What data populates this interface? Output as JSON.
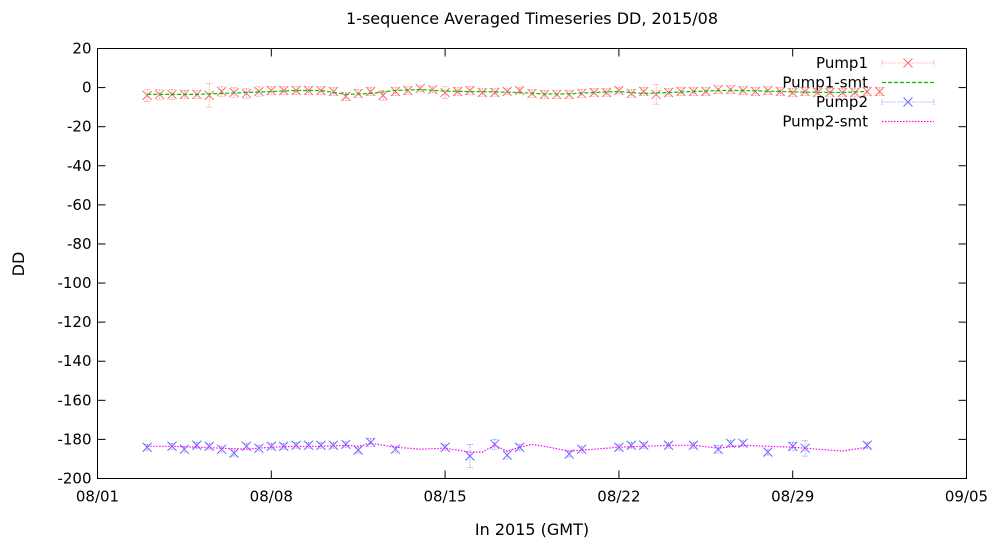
{
  "chart_data": {
    "type": "line",
    "title": "1-sequence Averaged Timeseries DD, 2015/08",
    "xlabel": "In 2015 (GMT)",
    "ylabel": "DD",
    "xlim": [
      "2015-08-01",
      "2015-09-05"
    ],
    "ylim": [
      -200,
      20
    ],
    "x_ticks": [
      "08/01",
      "08/08",
      "08/15",
      "08/22",
      "08/29",
      "09/05"
    ],
    "y_ticks": [
      "20",
      "0",
      "-20",
      "-40",
      "-60",
      "-80",
      "-100",
      "-120",
      "-140",
      "-160",
      "-180",
      "-200"
    ],
    "legend_position": "top-right",
    "grid": false,
    "series": [
      {
        "name": "Pump1",
        "style": "points-errorbars",
        "marker": "x",
        "color": "#ff6a6a",
        "x": [
          "2015-08-03T00:00",
          "2015-08-03T12:00",
          "2015-08-04T00:00",
          "2015-08-04T12:00",
          "2015-08-05T00:00",
          "2015-08-05T12:00",
          "2015-08-06T00:00",
          "2015-08-06T12:00",
          "2015-08-07T00:00",
          "2015-08-07T12:00",
          "2015-08-08T00:00",
          "2015-08-08T12:00",
          "2015-08-09T00:00",
          "2015-08-09T12:00",
          "2015-08-10T00:00",
          "2015-08-10T12:00",
          "2015-08-11T00:00",
          "2015-08-11T12:00",
          "2015-08-12T00:00",
          "2015-08-12T12:00",
          "2015-08-13T00:00",
          "2015-08-13T12:00",
          "2015-08-14T00:00",
          "2015-08-14T12:00",
          "2015-08-15T00:00",
          "2015-08-15T12:00",
          "2015-08-16T00:00",
          "2015-08-16T12:00",
          "2015-08-17T00:00",
          "2015-08-17T12:00",
          "2015-08-18T00:00",
          "2015-08-18T12:00",
          "2015-08-19T00:00",
          "2015-08-19T12:00",
          "2015-08-20T00:00",
          "2015-08-20T12:00",
          "2015-08-21T00:00",
          "2015-08-21T12:00",
          "2015-08-22T00:00",
          "2015-08-22T12:00",
          "2015-08-23T00:00",
          "2015-08-23T12:00",
          "2015-08-24T00:00",
          "2015-08-24T12:00",
          "2015-08-25T00:00",
          "2015-08-25T12:00",
          "2015-08-26T00:00",
          "2015-08-26T12:00",
          "2015-08-27T00:00",
          "2015-08-27T12:00",
          "2015-08-28T00:00",
          "2015-08-28T12:00",
          "2015-08-29T00:00",
          "2015-08-29T12:00",
          "2015-08-30T00:00",
          "2015-08-30T12:00",
          "2015-08-31T00:00",
          "2015-08-31T12:00",
          "2015-09-01T00:00",
          "2015-09-01T12:00"
        ],
        "y": [
          -4,
          -3.5,
          -3.5,
          -3.5,
          -3.5,
          -4,
          -2,
          -2.5,
          -3,
          -2,
          -1.5,
          -1.5,
          -1.5,
          -1.5,
          -1.5,
          -2,
          -4.5,
          -3,
          -2,
          -4,
          -2,
          -1.5,
          -0.5,
          -1,
          -2.5,
          -2,
          -1.5,
          -2.5,
          -2.5,
          -2,
          -1.5,
          -3,
          -3.5,
          -3.5,
          -3.5,
          -3,
          -2.5,
          -2.5,
          -1.5,
          -3,
          -2,
          -3.5,
          -2.5,
          -2,
          -2,
          -2,
          -1,
          -1,
          -1.5,
          -2,
          -1.5,
          -2,
          -2.5,
          -2,
          -2.5,
          -2.5,
          -2.5,
          -2.5,
          -2,
          -2
        ],
        "yerr": [
          3,
          2.5,
          2.5,
          2,
          2,
          6,
          2.5,
          2.5,
          2.5,
          2.5,
          2,
          2,
          2,
          2,
          2,
          2,
          2,
          2,
          2,
          2.5,
          2,
          2,
          1.5,
          1.5,
          3,
          2,
          2,
          2,
          2,
          1.5,
          1.5,
          2,
          2,
          2,
          2,
          2,
          2,
          2,
          1.5,
          2,
          2,
          5,
          2,
          2,
          2,
          2,
          2,
          2,
          2,
          2,
          2,
          2,
          2,
          2,
          2,
          2,
          2,
          2,
          2,
          2
        ]
      },
      {
        "name": "Pump1-smt",
        "style": "dashed-line",
        "color": "#00c000",
        "x": [
          "2015-08-03",
          "2015-08-05",
          "2015-08-07",
          "2015-08-09",
          "2015-08-10",
          "2015-08-11",
          "2015-08-12",
          "2015-08-13",
          "2015-08-14",
          "2015-08-15",
          "2015-08-16",
          "2015-08-17",
          "2015-08-18",
          "2015-08-19",
          "2015-08-20",
          "2015-08-21",
          "2015-08-22",
          "2015-08-23",
          "2015-08-24",
          "2015-08-25",
          "2015-08-26",
          "2015-08-27",
          "2015-08-28",
          "2015-08-29",
          "2015-08-30",
          "2015-08-31",
          "2015-09-01"
        ],
        "y": [
          -3.5,
          -3.5,
          -2.5,
          -1.5,
          -1.5,
          -3.5,
          -3,
          -1.5,
          -1,
          -1.8,
          -2,
          -2.2,
          -2.5,
          -3.3,
          -3.2,
          -2.5,
          -2,
          -3,
          -2.5,
          -2,
          -1.5,
          -1.5,
          -1.8,
          -2.2,
          -2.4,
          -2.5,
          -2
        ]
      },
      {
        "name": "Pump2",
        "style": "points-errorbars",
        "marker": "x",
        "color": "#6a6aff",
        "x": [
          "2015-08-03T00:00",
          "2015-08-04T00:00",
          "2015-08-04T12:00",
          "2015-08-05T00:00",
          "2015-08-05T12:00",
          "2015-08-06T00:00",
          "2015-08-06T12:00",
          "2015-08-07T00:00",
          "2015-08-07T12:00",
          "2015-08-08T00:00",
          "2015-08-08T12:00",
          "2015-08-09T00:00",
          "2015-08-09T12:00",
          "2015-08-10T00:00",
          "2015-08-10T12:00",
          "2015-08-11T00:00",
          "2015-08-11T12:00",
          "2015-08-12T00:00",
          "2015-08-13T00:00",
          "2015-08-15T00:00",
          "2015-08-16T00:00",
          "2015-08-17T00:00",
          "2015-08-17T12:00",
          "2015-08-18T00:00",
          "2015-08-20T00:00",
          "2015-08-20T12:00",
          "2015-08-22T00:00",
          "2015-08-22T12:00",
          "2015-08-23T00:00",
          "2015-08-24T00:00",
          "2015-08-25T00:00",
          "2015-08-26T00:00",
          "2015-08-26T12:00",
          "2015-08-27T00:00",
          "2015-08-28T00:00",
          "2015-08-29T00:00",
          "2015-08-29T12:00",
          "2015-09-01T00:00"
        ],
        "y": [
          -184,
          -183.5,
          -185,
          -183,
          -183.5,
          -185,
          -187,
          -183.5,
          -184.5,
          -183.5,
          -183.5,
          -183,
          -183,
          -183,
          -183,
          -182.5,
          -185.5,
          -181.5,
          -185,
          -184,
          -188.5,
          -182.5,
          -188,
          -184,
          -187.5,
          -185,
          -184,
          -183,
          -183,
          -183,
          -183,
          -185,
          -182,
          -182,
          -186.5,
          -183.5,
          -184.5,
          -183
        ],
        "yerr": [
          1.5,
          1.5,
          1.5,
          1.5,
          1.5,
          1.5,
          1.5,
          1.5,
          1.5,
          1.5,
          1.5,
          1.5,
          1.5,
          1.5,
          1.5,
          1.5,
          1.5,
          2,
          1.5,
          1.5,
          6,
          2.5,
          2,
          1.5,
          1.5,
          1.5,
          1.5,
          1.5,
          1.5,
          1.5,
          1.5,
          2,
          1.5,
          1.5,
          1.5,
          2,
          4,
          1.5
        ]
      },
      {
        "name": "Pump2-smt",
        "style": "dotted-line",
        "color": "#ff00ff",
        "x": [
          "2015-08-03",
          "2015-08-04",
          "2015-08-05",
          "2015-08-06",
          "2015-08-07",
          "2015-08-08",
          "2015-08-09",
          "2015-08-10",
          "2015-08-11",
          "2015-08-11T12:00",
          "2015-08-12",
          "2015-08-13",
          "2015-08-14",
          "2015-08-15",
          "2015-08-16",
          "2015-08-16T12:00",
          "2015-08-17",
          "2015-08-17T12:00",
          "2015-08-18",
          "2015-08-18T12:00",
          "2015-08-19",
          "2015-08-20",
          "2015-08-21",
          "2015-08-22",
          "2015-08-23",
          "2015-08-24",
          "2015-08-25",
          "2015-08-26",
          "2015-08-27",
          "2015-08-28",
          "2015-08-29",
          "2015-08-30",
          "2015-08-31",
          "2015-09-01"
        ],
        "y": [
          -183.5,
          -183.5,
          -184,
          -184.5,
          -185,
          -184,
          -183.5,
          -183.5,
          -183,
          -183.5,
          -182,
          -184,
          -185,
          -184.5,
          -186.5,
          -186.5,
          -183,
          -186,
          -184,
          -182.5,
          -183.5,
          -186,
          -185,
          -184,
          -183.5,
          -183,
          -183,
          -184.5,
          -183,
          -183.5,
          -184,
          -185,
          -186,
          -184
        ]
      }
    ]
  }
}
